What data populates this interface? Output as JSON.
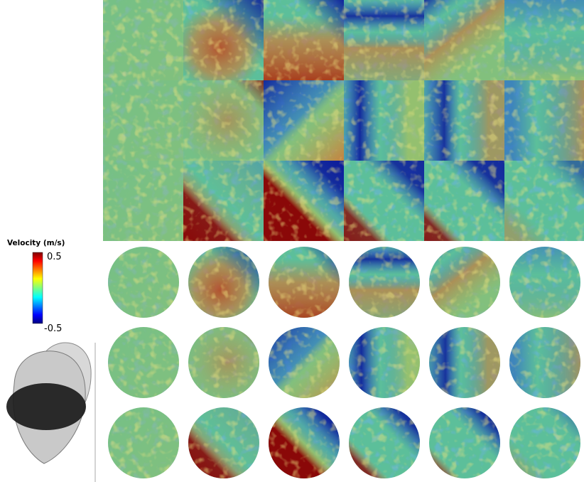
{
  "colorbar": {
    "title": "Velocity (m/s)",
    "max": 0.5,
    "min": -0.5
  }
}
